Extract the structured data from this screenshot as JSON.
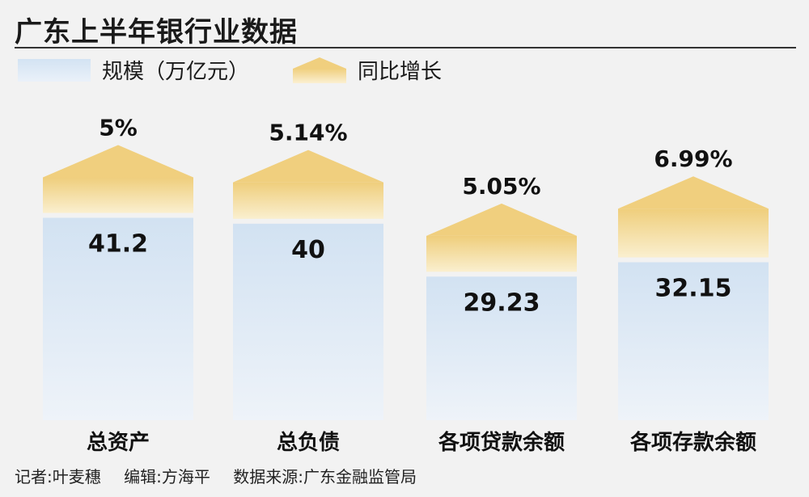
{
  "title": "广东上半年银行业数据",
  "legend": {
    "scale_label": "规模（万亿元）",
    "growth_label": "同比增长"
  },
  "chart_data": {
    "type": "bar",
    "categories": [
      "总资产",
      "总负债",
      "各项贷款余额",
      "各项存款余额"
    ],
    "series": [
      {
        "name": "规模（万亿元）",
        "values": [
          41.2,
          40,
          29.23,
          32.15
        ],
        "labels": [
          "41.2",
          "40",
          "29.23",
          "32.15"
        ]
      },
      {
        "name": "同比增长",
        "values": [
          5,
          5.14,
          5.05,
          6.99
        ],
        "labels": [
          "5%",
          "5.14%",
          "5.05%",
          "6.99%"
        ]
      }
    ],
    "colors": {
      "scale": "#dbe8f5",
      "growth": "#f1d48a"
    }
  },
  "footer": {
    "reporter": "记者:叶麦穗",
    "editor": "编辑:方海平",
    "source": "数据来源:广东金融监管局"
  }
}
